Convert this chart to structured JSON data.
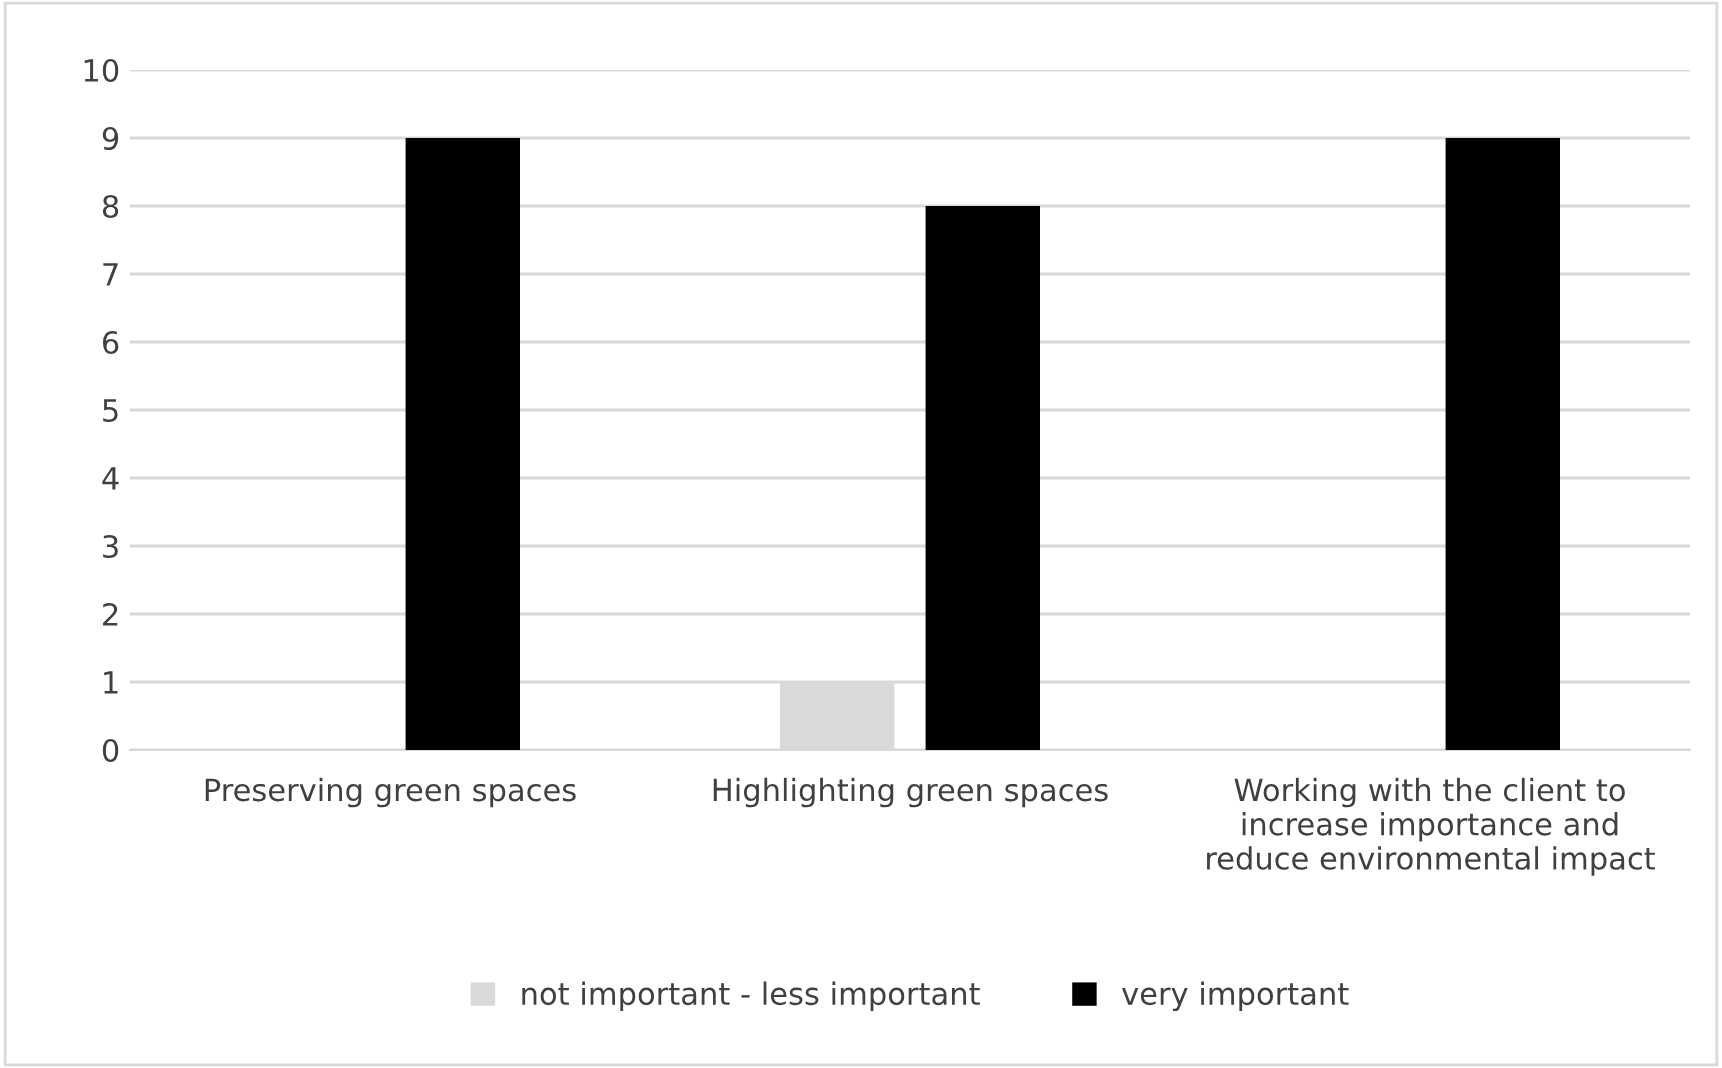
{
  "chart_data": {
    "type": "bar",
    "categories": [
      "Preserving green spaces",
      "Highlighting green spaces",
      "Working with the client to\nincrease importance and\nreduce environmental impact"
    ],
    "series": [
      {
        "name": "not important - less important",
        "color": "#d9d9d9",
        "values": [
          0,
          1,
          0
        ]
      },
      {
        "name": "very important",
        "color": "#000000",
        "values": [
          9,
          8,
          9
        ]
      }
    ],
    "ylim": [
      0,
      10
    ],
    "yticks": [
      0,
      1,
      2,
      3,
      4,
      5,
      6,
      7,
      8,
      9,
      10
    ],
    "grid": "y",
    "legend": "bottom"
  }
}
